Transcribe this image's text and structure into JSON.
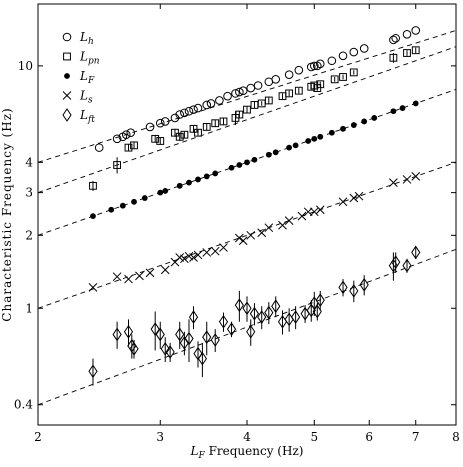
{
  "chart_data": {
    "type": "scatter",
    "title": "",
    "xlabel": "L_F Frequency (Hz)",
    "xlabel_main": "L",
    "xlabel_sub": "F",
    "xlabel_rest": " Frequency (Hz)",
    "ylabel": "Characteristic Frequency (Hz)",
    "x_scale": "log",
    "y_scale": "log",
    "xlim": [
      2,
      8
    ],
    "ylim": [
      0.33,
      18
    ],
    "x_ticks": [
      2,
      3,
      4,
      5,
      6,
      7,
      8
    ],
    "x_tick_labels": [
      "2",
      "3",
      "4",
      "5",
      "6",
      "7",
      "8"
    ],
    "y_ticks": [
      0.4,
      1,
      2,
      3,
      4,
      10
    ],
    "y_tick_labels": [
      "0.4",
      "1",
      "2",
      "3",
      "4",
      "10"
    ],
    "grid": false,
    "legend_position": "top-left",
    "series": [
      {
        "name": "L_h",
        "label_main": "L",
        "label_sub": "h",
        "marker": "circle-open",
        "fit": {
          "x0": 2,
          "y0": 4.0,
          "x1": 8,
          "y1": 14.0
        },
        "points": [
          {
            "x": 2.45,
            "y": 4.6
          },
          {
            "x": 2.6,
            "y": 5.0
          },
          {
            "x": 2.65,
            "y": 5.1
          },
          {
            "x": 2.68,
            "y": 5.2
          },
          {
            "x": 2.72,
            "y": 5.3
          },
          {
            "x": 2.9,
            "y": 5.6
          },
          {
            "x": 3.0,
            "y": 5.8
          },
          {
            "x": 3.05,
            "y": 5.9
          },
          {
            "x": 3.15,
            "y": 6.1
          },
          {
            "x": 3.2,
            "y": 6.3
          },
          {
            "x": 3.25,
            "y": 6.4
          },
          {
            "x": 3.3,
            "y": 6.5
          },
          {
            "x": 3.35,
            "y": 6.6
          },
          {
            "x": 3.4,
            "y": 6.7
          },
          {
            "x": 3.5,
            "y": 6.9
          },
          {
            "x": 3.55,
            "y": 7.0
          },
          {
            "x": 3.65,
            "y": 7.2
          },
          {
            "x": 3.75,
            "y": 7.5
          },
          {
            "x": 3.85,
            "y": 7.7
          },
          {
            "x": 3.9,
            "y": 7.8
          },
          {
            "x": 3.95,
            "y": 7.9
          },
          {
            "x": 4.05,
            "y": 8.1
          },
          {
            "x": 4.15,
            "y": 8.3
          },
          {
            "x": 4.3,
            "y": 8.6
          },
          {
            "x": 4.4,
            "y": 8.8
          },
          {
            "x": 4.6,
            "y": 9.2
          },
          {
            "x": 4.75,
            "y": 9.6
          },
          {
            "x": 4.95,
            "y": 9.9
          },
          {
            "x": 5.0,
            "y": 10.0
          },
          {
            "x": 5.05,
            "y": 10.0
          },
          {
            "x": 5.1,
            "y": 10.2
          },
          {
            "x": 5.3,
            "y": 10.5
          },
          {
            "x": 5.5,
            "y": 11.0
          },
          {
            "x": 5.7,
            "y": 11.4
          },
          {
            "x": 5.9,
            "y": 11.8
          },
          {
            "x": 6.5,
            "y": 12.8
          },
          {
            "x": 6.55,
            "y": 13.0
          },
          {
            "x": 6.8,
            "y": 13.5
          },
          {
            "x": 7.0,
            "y": 14.0
          }
        ]
      },
      {
        "name": "L_pn",
        "label_main": "L",
        "label_sub": "pn",
        "marker": "square-open",
        "fit": {
          "x0": 2,
          "y0": 3.0,
          "x1": 8,
          "y1": 12.0
        },
        "points": [
          {
            "x": 2.4,
            "y": 3.2,
            "e": 0.15
          },
          {
            "x": 2.6,
            "y": 3.9,
            "e": 0.3
          },
          {
            "x": 2.7,
            "y": 4.6,
            "e": 0.15
          },
          {
            "x": 2.75,
            "y": 4.7,
            "e": 0.15
          },
          {
            "x": 2.95,
            "y": 5.0,
            "e": 0.15
          },
          {
            "x": 3.0,
            "y": 4.9,
            "e": 0.15
          },
          {
            "x": 3.15,
            "y": 5.3,
            "e": 0.2
          },
          {
            "x": 3.2,
            "y": 5.1,
            "e": 0.2
          },
          {
            "x": 3.25,
            "y": 5.2,
            "e": 0.15
          },
          {
            "x": 3.35,
            "y": 5.5,
            "e": 0.2
          },
          {
            "x": 3.4,
            "y": 5.3,
            "e": 0.15
          },
          {
            "x": 3.5,
            "y": 5.6,
            "e": 0.2
          },
          {
            "x": 3.6,
            "y": 5.8,
            "e": 0.2
          },
          {
            "x": 3.7,
            "y": 5.9,
            "e": 0.2
          },
          {
            "x": 3.85,
            "y": 6.1,
            "e": 0.4
          },
          {
            "x": 3.9,
            "y": 6.3,
            "e": 0.2
          },
          {
            "x": 4.0,
            "y": 6.6,
            "e": 0.2
          },
          {
            "x": 4.1,
            "y": 6.9,
            "e": 0.2
          },
          {
            "x": 4.2,
            "y": 7.0,
            "e": 0.15
          },
          {
            "x": 4.3,
            "y": 7.2,
            "e": 0.2
          },
          {
            "x": 4.5,
            "y": 7.5,
            "e": 0.2
          },
          {
            "x": 4.6,
            "y": 7.7,
            "e": 0.2
          },
          {
            "x": 4.75,
            "y": 7.9,
            "e": 0.2
          },
          {
            "x": 4.95,
            "y": 8.2,
            "e": 0.2
          },
          {
            "x": 5.0,
            "y": 8.3,
            "e": 0.2
          },
          {
            "x": 5.05,
            "y": 8.1,
            "e": 0.2
          },
          {
            "x": 5.1,
            "y": 8.4,
            "e": 0.2
          },
          {
            "x": 5.35,
            "y": 8.8,
            "e": 0.2
          },
          {
            "x": 5.5,
            "y": 9.0,
            "e": 0.2
          },
          {
            "x": 5.7,
            "y": 9.4,
            "e": 0.2
          },
          {
            "x": 6.5,
            "y": 10.8,
            "e": 0.5
          },
          {
            "x": 6.8,
            "y": 11.3,
            "e": 0.3
          },
          {
            "x": 7.0,
            "y": 11.6,
            "e": 0.3
          }
        ]
      },
      {
        "name": "L_F",
        "label_main": "L",
        "label_sub": "F",
        "marker": "circle-filled",
        "fit": {
          "x0": 2,
          "y0": 2.0,
          "x1": 8,
          "y1": 8.0
        },
        "points": [
          {
            "x": 2.4,
            "y": 2.4
          },
          {
            "x": 2.55,
            "y": 2.55
          },
          {
            "x": 2.65,
            "y": 2.65
          },
          {
            "x": 2.75,
            "y": 2.75
          },
          {
            "x": 2.85,
            "y": 2.85
          },
          {
            "x": 3.0,
            "y": 3.0
          },
          {
            "x": 3.05,
            "y": 3.05
          },
          {
            "x": 3.2,
            "y": 3.2
          },
          {
            "x": 3.3,
            "y": 3.3
          },
          {
            "x": 3.4,
            "y": 3.4
          },
          {
            "x": 3.5,
            "y": 3.5
          },
          {
            "x": 3.6,
            "y": 3.6
          },
          {
            "x": 3.8,
            "y": 3.8
          },
          {
            "x": 3.9,
            "y": 3.9
          },
          {
            "x": 4.0,
            "y": 4.0
          },
          {
            "x": 4.1,
            "y": 4.1
          },
          {
            "x": 4.3,
            "y": 4.3
          },
          {
            "x": 4.4,
            "y": 4.4
          },
          {
            "x": 4.6,
            "y": 4.6
          },
          {
            "x": 4.7,
            "y": 4.7
          },
          {
            "x": 4.9,
            "y": 4.9
          },
          {
            "x": 5.0,
            "y": 5.0
          },
          {
            "x": 5.1,
            "y": 5.1
          },
          {
            "x": 5.3,
            "y": 5.3
          },
          {
            "x": 5.5,
            "y": 5.5
          },
          {
            "x": 5.7,
            "y": 5.7
          },
          {
            "x": 5.9,
            "y": 5.9
          },
          {
            "x": 6.1,
            "y": 6.1
          },
          {
            "x": 6.5,
            "y": 6.5
          },
          {
            "x": 6.7,
            "y": 6.7
          },
          {
            "x": 7.0,
            "y": 7.0
          }
        ]
      },
      {
        "name": "L_s",
        "label_main": "L",
        "label_sub": "s",
        "marker": "x",
        "fit": {
          "x0": 2,
          "y0": 1.0,
          "x1": 8,
          "y1": 4.0
        },
        "points": [
          {
            "x": 2.4,
            "y": 1.22
          },
          {
            "x": 2.6,
            "y": 1.35
          },
          {
            "x": 2.7,
            "y": 1.32
          },
          {
            "x": 2.8,
            "y": 1.36
          },
          {
            "x": 2.9,
            "y": 1.4
          },
          {
            "x": 3.05,
            "y": 1.44
          },
          {
            "x": 3.15,
            "y": 1.55
          },
          {
            "x": 3.2,
            "y": 1.62
          },
          {
            "x": 3.25,
            "y": 1.6
          },
          {
            "x": 3.3,
            "y": 1.64
          },
          {
            "x": 3.35,
            "y": 1.62
          },
          {
            "x": 3.4,
            "y": 1.66
          },
          {
            "x": 3.5,
            "y": 1.7
          },
          {
            "x": 3.6,
            "y": 1.72
          },
          {
            "x": 3.7,
            "y": 1.78
          },
          {
            "x": 3.9,
            "y": 1.95
          },
          {
            "x": 3.95,
            "y": 1.9
          },
          {
            "x": 4.05,
            "y": 2.0
          },
          {
            "x": 4.2,
            "y": 2.05
          },
          {
            "x": 4.3,
            "y": 2.15
          },
          {
            "x": 4.5,
            "y": 2.2
          },
          {
            "x": 4.6,
            "y": 2.3
          },
          {
            "x": 4.8,
            "y": 2.4
          },
          {
            "x": 4.9,
            "y": 2.5
          },
          {
            "x": 5.0,
            "y": 2.5
          },
          {
            "x": 5.1,
            "y": 2.55
          },
          {
            "x": 5.5,
            "y": 2.75
          },
          {
            "x": 5.7,
            "y": 2.85
          },
          {
            "x": 5.8,
            "y": 2.9
          },
          {
            "x": 6.5,
            "y": 3.3
          },
          {
            "x": 6.8,
            "y": 3.4
          },
          {
            "x": 7.0,
            "y": 3.5
          }
        ]
      },
      {
        "name": "L_ft",
        "label_main": "L",
        "label_sub": "ft",
        "marker": "diamond-open",
        "fit": {
          "x0": 2,
          "y0": 0.4,
          "x1": 8,
          "y1": 1.75
        },
        "points": [
          {
            "x": 2.4,
            "y": 0.55,
            "e": 0.07
          },
          {
            "x": 2.6,
            "y": 0.78,
            "e": 0.1
          },
          {
            "x": 2.7,
            "y": 0.8,
            "e": 0.1
          },
          {
            "x": 2.73,
            "y": 0.7,
            "e": 0.08
          },
          {
            "x": 2.75,
            "y": 0.68,
            "e": 0.06
          },
          {
            "x": 2.95,
            "y": 0.82,
            "e": 0.15
          },
          {
            "x": 3.0,
            "y": 0.78,
            "e": 0.1
          },
          {
            "x": 3.05,
            "y": 0.68,
            "e": 0.08
          },
          {
            "x": 3.1,
            "y": 0.66,
            "e": 0.06
          },
          {
            "x": 3.2,
            "y": 0.78,
            "e": 0.1
          },
          {
            "x": 3.25,
            "y": 0.72,
            "e": 0.08
          },
          {
            "x": 3.3,
            "y": 0.75,
            "e": 0.15
          },
          {
            "x": 3.35,
            "y": 0.92,
            "e": 0.1
          },
          {
            "x": 3.4,
            "y": 0.65,
            "e": 0.08
          },
          {
            "x": 3.45,
            "y": 0.62,
            "e": 0.1
          },
          {
            "x": 3.5,
            "y": 0.76,
            "e": 0.12
          },
          {
            "x": 3.6,
            "y": 0.74,
            "e": 0.08
          },
          {
            "x": 3.7,
            "y": 0.88,
            "e": 0.08
          },
          {
            "x": 3.8,
            "y": 0.82,
            "e": 0.06
          },
          {
            "x": 3.9,
            "y": 1.03,
            "e": 0.15
          },
          {
            "x": 4.0,
            "y": 1.0,
            "e": 0.12
          },
          {
            "x": 4.05,
            "y": 0.8,
            "e": 0.1
          },
          {
            "x": 4.1,
            "y": 0.95,
            "e": 0.1
          },
          {
            "x": 4.2,
            "y": 0.92,
            "e": 0.1
          },
          {
            "x": 4.3,
            "y": 0.96,
            "e": 0.1
          },
          {
            "x": 4.4,
            "y": 1.02,
            "e": 0.1
          },
          {
            "x": 4.5,
            "y": 0.88,
            "e": 0.1
          },
          {
            "x": 4.6,
            "y": 0.9,
            "e": 0.1
          },
          {
            "x": 4.7,
            "y": 0.92,
            "e": 0.1
          },
          {
            "x": 4.85,
            "y": 0.95,
            "e": 0.08
          },
          {
            "x": 4.95,
            "y": 0.98,
            "e": 0.1
          },
          {
            "x": 5.0,
            "y": 1.05,
            "e": 0.12
          },
          {
            "x": 5.05,
            "y": 0.97,
            "e": 0.08
          },
          {
            "x": 5.1,
            "y": 1.08,
            "e": 0.1
          },
          {
            "x": 5.5,
            "y": 1.22,
            "e": 0.1
          },
          {
            "x": 5.7,
            "y": 1.18,
            "e": 0.12
          },
          {
            "x": 5.9,
            "y": 1.25,
            "e": 0.12
          },
          {
            "x": 6.5,
            "y": 1.5,
            "e": 0.2
          },
          {
            "x": 6.55,
            "y": 1.55,
            "e": 0.15
          },
          {
            "x": 6.8,
            "y": 1.5,
            "e": 0.1
          },
          {
            "x": 7.0,
            "y": 1.7,
            "e": 0.1
          }
        ]
      }
    ]
  }
}
